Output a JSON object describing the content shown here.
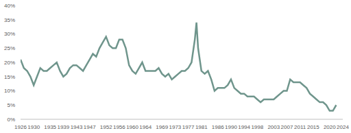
{
  "chart_data": {
    "type": "line",
    "x": [
      1926,
      1927,
      1928,
      1929,
      1930,
      1931,
      1932,
      1933,
      1934,
      1935,
      1936,
      1937,
      1938,
      1939,
      1940,
      1941,
      1942,
      1943,
      1944,
      1945,
      1946,
      1947,
      1948,
      1949,
      1950,
      1951,
      1952,
      1953,
      1954,
      1955,
      1956,
      1957,
      1958,
      1959,
      1960,
      1961,
      1962,
      1963,
      1964,
      1965,
      1966,
      1967,
      1968,
      1969,
      1970,
      1971,
      1972,
      1973,
      1974,
      1975,
      1976,
      1977,
      1978,
      1979,
      1979.5,
      1980,
      1981,
      1982,
      1983,
      1984,
      1985,
      1986,
      1987,
      1988,
      1989,
      1990,
      1991,
      1992,
      1993,
      1994,
      1995,
      1996,
      1997,
      1998,
      1999,
      2000,
      2001,
      2002,
      2003,
      2004,
      2005,
      2006,
      2007,
      2008,
      2009,
      2010,
      2011,
      2012,
      2013,
      2014,
      2015,
      2016,
      2017,
      2018,
      2019,
      2020,
      2021,
      2022
    ],
    "series": [
      {
        "color": "#6f958c",
        "values": [
          21,
          18,
          17,
          15,
          12,
          15,
          18,
          17,
          17,
          18,
          19,
          20,
          17,
          15,
          16,
          18,
          19,
          19,
          18,
          17,
          19,
          21,
          23,
          22,
          25,
          27,
          29,
          26,
          25,
          25,
          28,
          28,
          25,
          19,
          17,
          16,
          18,
          20,
          17,
          17,
          17,
          17,
          18,
          16,
          15,
          16,
          14,
          15,
          16,
          17,
          17,
          18,
          20,
          28,
          34,
          25,
          17,
          16,
          17,
          14,
          10,
          11,
          11,
          11,
          12,
          14,
          11,
          10,
          9,
          9,
          8,
          8,
          8,
          7,
          6,
          7,
          7,
          7,
          7,
          8,
          9,
          10,
          10,
          14,
          13,
          13,
          13,
          12,
          11,
          9,
          8,
          7,
          6,
          6,
          5,
          3,
          3,
          5
        ]
      }
    ],
    "xlim": [
      1926,
      2024
    ],
    "xticks": [
      1926,
      1930,
      1935,
      1939,
      1943,
      1947,
      1952,
      1956,
      1960,
      1964,
      1969,
      1973,
      1977,
      1981,
      1986,
      1990,
      1994,
      1998,
      2003,
      2007,
      2011,
      2015,
      2020,
      2024
    ],
    "ylim": [
      0,
      40
    ],
    "yticks": [
      {
        "value": 0,
        "label": "0%"
      },
      {
        "value": 5,
        "label": "5%"
      },
      {
        "value": 10,
        "label": "10%"
      },
      {
        "value": 15,
        "label": "15%"
      },
      {
        "value": 20,
        "label": "20%"
      },
      {
        "value": 25,
        "label": "25%"
      },
      {
        "value": 30,
        "label": "30%"
      },
      {
        "value": 35,
        "label": "35%"
      },
      {
        "value": 40,
        "label": "40%"
      }
    ],
    "grid": false
  }
}
